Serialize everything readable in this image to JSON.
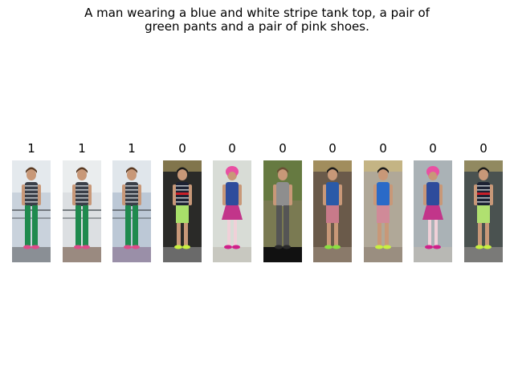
{
  "caption": {
    "line1": "A man wearing a blue and white stripe tank top, a pair of",
    "line2": "green pants and a pair of pink shoes."
  },
  "gallery": [
    {
      "label": "1",
      "scene": "outdoor-railing",
      "bg": "#c9d2dc",
      "top": "stripe-tank",
      "top_color": "#3a3f48",
      "bottom": "pants",
      "bottom_color": "#1f8a4e",
      "shoes": "#e04a8a",
      "hair": "#5a3a22",
      "floor": "#8a8f95"
    },
    {
      "label": "1",
      "scene": "outdoor-railing",
      "bg": "#dcdfe2",
      "top": "stripe-tank",
      "top_color": "#3a3f48",
      "bottom": "pants",
      "bottom_color": "#1f8a4e",
      "shoes": "#e04a8a",
      "hair": "#5a3a22",
      "floor": "#9a8a80"
    },
    {
      "label": "1",
      "scene": "outdoor-railing",
      "bg": "#bcc8d6",
      "top": "stripe-tank",
      "top_color": "#3a3f48",
      "bottom": "pants",
      "bottom_color": "#1f8a4e",
      "shoes": "#e04a8a",
      "hair": "#5a3a22",
      "floor": "#9a8fa8"
    },
    {
      "label": "0",
      "scene": "indoor",
      "bg": "#2a2a28",
      "top": "stripe-tee",
      "top_color": "#1d2233",
      "bottom": "shorts",
      "bottom_color": "#a8e06a",
      "shoes": "#c8f040",
      "hair": "#1a1a1a",
      "floor": "#6a6a6a"
    },
    {
      "label": "0",
      "scene": "bright",
      "bg": "#d8dcd6",
      "top": "tee",
      "top_color": "#2e4c9c",
      "bottom": "skirt",
      "bottom_color": "#c2358a",
      "shoes": "#d0208a",
      "hair": "#e94fa3",
      "floor": "#c8c8c0"
    },
    {
      "label": "0",
      "scene": "greenery",
      "bg": "#7a7a52",
      "top": "tee",
      "top_color": "#8e8e8e",
      "bottom": "pants",
      "bottom_color": "#555555",
      "shoes": "#2a2a2a",
      "hair": "#6a4e34",
      "floor": "#111111"
    },
    {
      "label": "0",
      "scene": "indoor",
      "bg": "#6a5a4a",
      "top": "tee",
      "top_color": "#2a5aa8",
      "bottom": "shorts",
      "bottom_color": "#c87a8a",
      "shoes": "#8ae040",
      "hair": "#1a1a1a",
      "floor": "#8a7a6a"
    },
    {
      "label": "0",
      "scene": "indoor",
      "bg": "#b0a898",
      "top": "tee",
      "top_color": "#2a6ac8",
      "bottom": "shorts",
      "bottom_color": "#d08a98",
      "shoes": "#c8f040",
      "hair": "#1a1a1a",
      "floor": "#9a8e80"
    },
    {
      "label": "0",
      "scene": "bright",
      "bg": "#aab2b6",
      "top": "tee",
      "top_color": "#2e4c9c",
      "bottom": "skirt",
      "bottom_color": "#c2358a",
      "shoes": "#d0208a",
      "hair": "#e94fa3",
      "floor": "#b8b8b4"
    },
    {
      "label": "0",
      "scene": "indoor",
      "bg": "#4a5250",
      "top": "stripe-tee",
      "top_color": "#1d2233",
      "bottom": "shorts",
      "bottom_color": "#b0e070",
      "shoes": "#c8f040",
      "hair": "#1a1a1a",
      "floor": "#7a7a78"
    }
  ]
}
